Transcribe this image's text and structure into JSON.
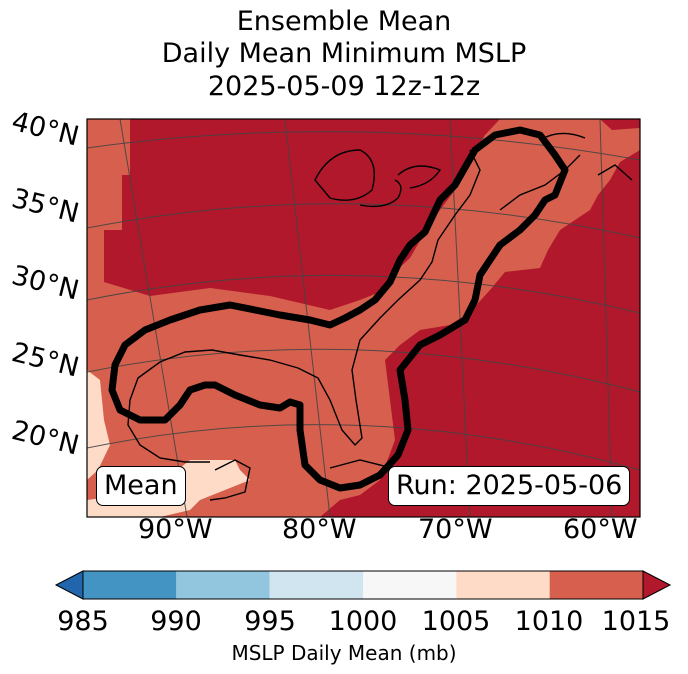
{
  "title": {
    "line1": "Ensemble Mean",
    "line2": "Daily Mean Minimum MSLP",
    "line3": "2025-05-09 12z-12z"
  },
  "map": {
    "mean_label": "Mean",
    "run_label": "Run: 2025-05-06",
    "lat_labels": [
      "40°N",
      "35°N",
      "30°N",
      "25°N",
      "20°N"
    ],
    "lon_labels": [
      "90°W",
      "80°W",
      "70°W",
      "60°W"
    ],
    "colors": {
      "c1010_1015": "#b2182b",
      "c1005_1010": "#d6604d",
      "c1000_1005": "#fddbc7",
      "contour": "#000000",
      "coast": "#000000",
      "grid": "#444444"
    }
  },
  "colorbar": {
    "label": "MSLP Daily Mean (mb)",
    "ticks": [
      "985",
      "990",
      "995",
      "1000",
      "1005",
      "1010",
      "1015"
    ],
    "colors": [
      "#2166ac",
      "#4393c3",
      "#92c5de",
      "#d1e5f0",
      "#f7f7f7",
      "#fddbc7",
      "#d6604d",
      "#b2182b"
    ]
  }
}
